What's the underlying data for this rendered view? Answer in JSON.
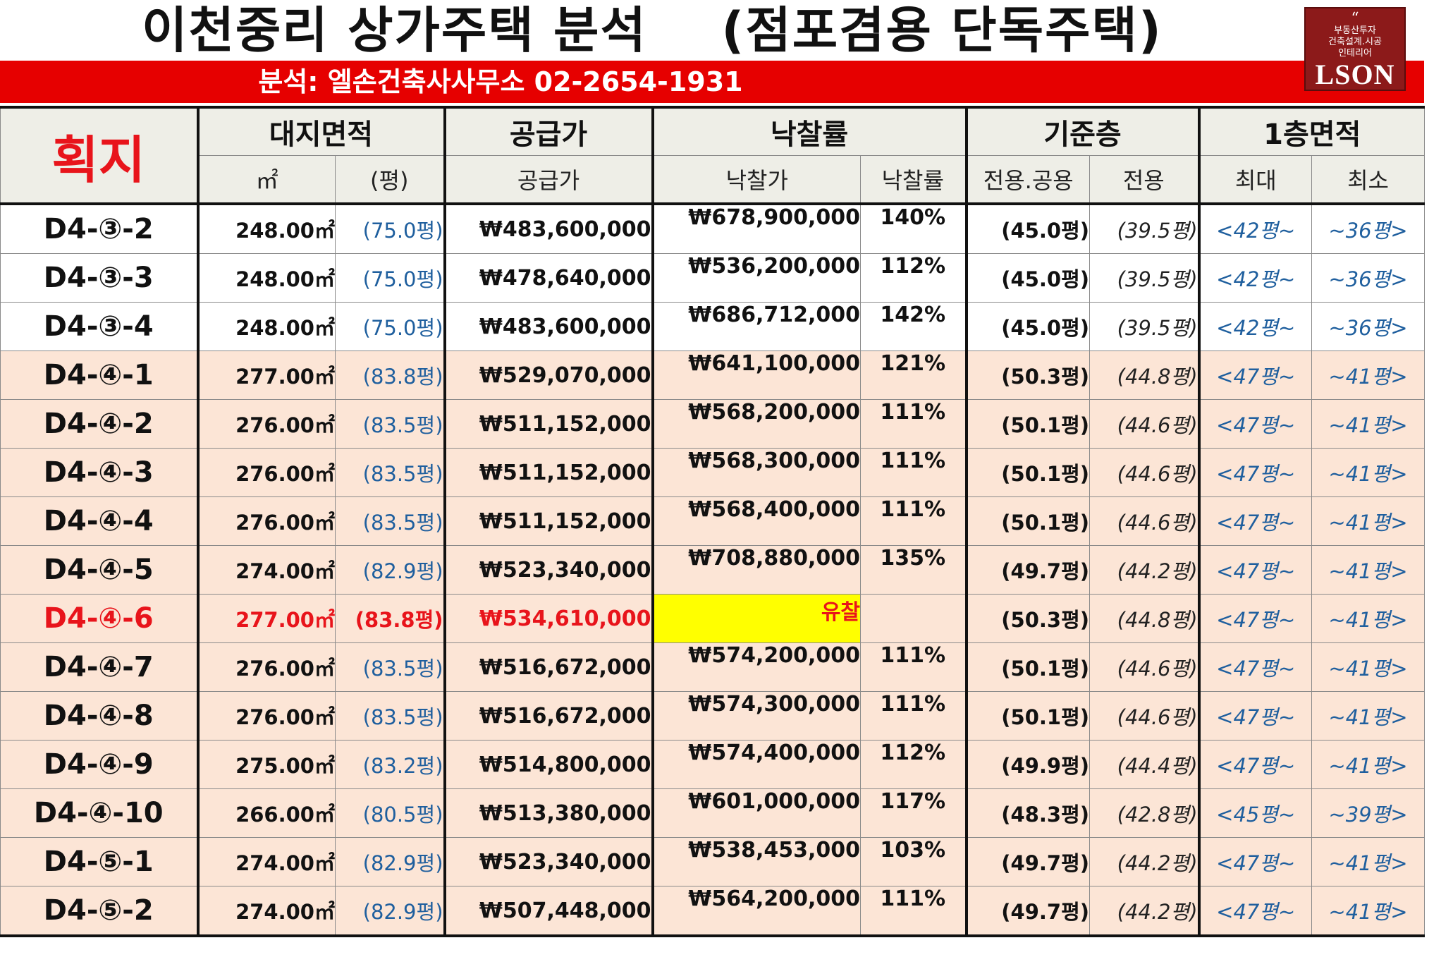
{
  "title": "이천중리 상가주택 분석    (점포겸용 단독주택)",
  "subtitle": "분석: 엘손건축사사무소 02-2654-1931",
  "logo": {
    "quote": "“",
    "tagline1": "부동산투자",
    "tagline2": "건축설계.시공",
    "tagline3": "인테리어",
    "brand": "LSON"
  },
  "table": {
    "lot_header": "획지",
    "group_headers": {
      "land_area": "대지면적",
      "supply": "공급가",
      "bid_rate": "낙찰률",
      "base_floor": "기준층",
      "first_floor": "1층면적"
    },
    "sub_headers": {
      "sqm": "㎡",
      "pyeong": "(평)",
      "supply": "공급가",
      "bid_price": "낙찰가",
      "bid_rate": "낙찰률",
      "total": "전용.공용",
      "exclusive": "전용",
      "max": "최대",
      "min": "최소"
    },
    "rows": [
      {
        "lot": "D4-③-2",
        "area": "248.00㎡",
        "pyeong": "(75.0평)",
        "supply": "₩483,600,000",
        "bid": "₩678,900,000",
        "rate": "140%",
        "base": "(45.0평)",
        "excl": "(39.5평)",
        "fmax": "<42평~",
        "fmin": "~36평>"
      },
      {
        "lot": "D4-③-3",
        "area": "248.00㎡",
        "pyeong": "(75.0평)",
        "supply": "₩478,640,000",
        "bid": "₩536,200,000",
        "rate": "112%",
        "base": "(45.0평)",
        "excl": "(39.5평)",
        "fmax": "<42평~",
        "fmin": "~36평>"
      },
      {
        "lot": "D4-③-4",
        "area": "248.00㎡",
        "pyeong": "(75.0평)",
        "supply": "₩483,600,000",
        "bid": "₩686,712,000",
        "rate": "142%",
        "base": "(45.0평)",
        "excl": "(39.5평)",
        "fmax": "<42평~",
        "fmin": "~36평>"
      },
      {
        "lot": "D4-④-1",
        "area": "277.00㎡",
        "pyeong": "(83.8평)",
        "supply": "₩529,070,000",
        "bid": "₩641,100,000",
        "rate": "121%",
        "base": "(50.3평)",
        "excl": "(44.8평)",
        "fmax": "<47평~",
        "fmin": "~41평>"
      },
      {
        "lot": "D4-④-2",
        "area": "276.00㎡",
        "pyeong": "(83.5평)",
        "supply": "₩511,152,000",
        "bid": "₩568,200,000",
        "rate": "111%",
        "base": "(50.1평)",
        "excl": "(44.6평)",
        "fmax": "<47평~",
        "fmin": "~41평>"
      },
      {
        "lot": "D4-④-3",
        "area": "276.00㎡",
        "pyeong": "(83.5평)",
        "supply": "₩511,152,000",
        "bid": "₩568,300,000",
        "rate": "111%",
        "base": "(50.1평)",
        "excl": "(44.6평)",
        "fmax": "<47평~",
        "fmin": "~41평>"
      },
      {
        "lot": "D4-④-4",
        "area": "276.00㎡",
        "pyeong": "(83.5평)",
        "supply": "₩511,152,000",
        "bid": "₩568,400,000",
        "rate": "111%",
        "base": "(50.1평)",
        "excl": "(44.6평)",
        "fmax": "<47평~",
        "fmin": "~41평>"
      },
      {
        "lot": "D4-④-5",
        "area": "274.00㎡",
        "pyeong": "(82.9평)",
        "supply": "₩523,340,000",
        "bid": "₩708,880,000",
        "rate": "135%",
        "base": "(49.7평)",
        "excl": "(44.2평)",
        "fmax": "<47평~",
        "fmin": "~41평>"
      },
      {
        "lot": "D4-④-6",
        "area": "277.00㎡",
        "pyeong": "(83.8평)",
        "supply": "₩534,610,000",
        "bid": "유찰",
        "rate": "",
        "base": "(50.3평)",
        "excl": "(44.8평)",
        "fmax": "<47평~",
        "fmin": "~41평>"
      },
      {
        "lot": "D4-④-7",
        "area": "276.00㎡",
        "pyeong": "(83.5평)",
        "supply": "₩516,672,000",
        "bid": "₩574,200,000",
        "rate": "111%",
        "base": "(50.1평)",
        "excl": "(44.6평)",
        "fmax": "<47평~",
        "fmin": "~41평>"
      },
      {
        "lot": "D4-④-8",
        "area": "276.00㎡",
        "pyeong": "(83.5평)",
        "supply": "₩516,672,000",
        "bid": "₩574,300,000",
        "rate": "111%",
        "base": "(50.1평)",
        "excl": "(44.6평)",
        "fmax": "<47평~",
        "fmin": "~41평>"
      },
      {
        "lot": "D4-④-9",
        "area": "275.00㎡",
        "pyeong": "(83.2평)",
        "supply": "₩514,800,000",
        "bid": "₩574,400,000",
        "rate": "112%",
        "base": "(49.9평)",
        "excl": "(44.4평)",
        "fmax": "<47평~",
        "fmin": "~41평>"
      },
      {
        "lot": "D4-④-10",
        "area": "266.00㎡",
        "pyeong": "(80.5평)",
        "supply": "₩513,380,000",
        "bid": "₩601,000,000",
        "rate": "117%",
        "base": "(48.3평)",
        "excl": "(42.8평)",
        "fmax": "<45평~",
        "fmin": "~39평>"
      },
      {
        "lot": "D4-⑤-1",
        "area": "274.00㎡",
        "pyeong": "(82.9평)",
        "supply": "₩523,340,000",
        "bid": "₩538,453,000",
        "rate": "103%",
        "base": "(49.7평)",
        "excl": "(44.2평)",
        "fmax": "<47평~",
        "fmin": "~41평>"
      },
      {
        "lot": "D4-⑤-2",
        "area": "274.00㎡",
        "pyeong": "(82.9평)",
        "supply": "₩507,448,000",
        "bid": "₩564,200,000",
        "rate": "111%",
        "base": "(49.7평)",
        "excl": "(44.2평)",
        "fmax": "<47평~",
        "fmin": "~41평>"
      }
    ]
  }
}
